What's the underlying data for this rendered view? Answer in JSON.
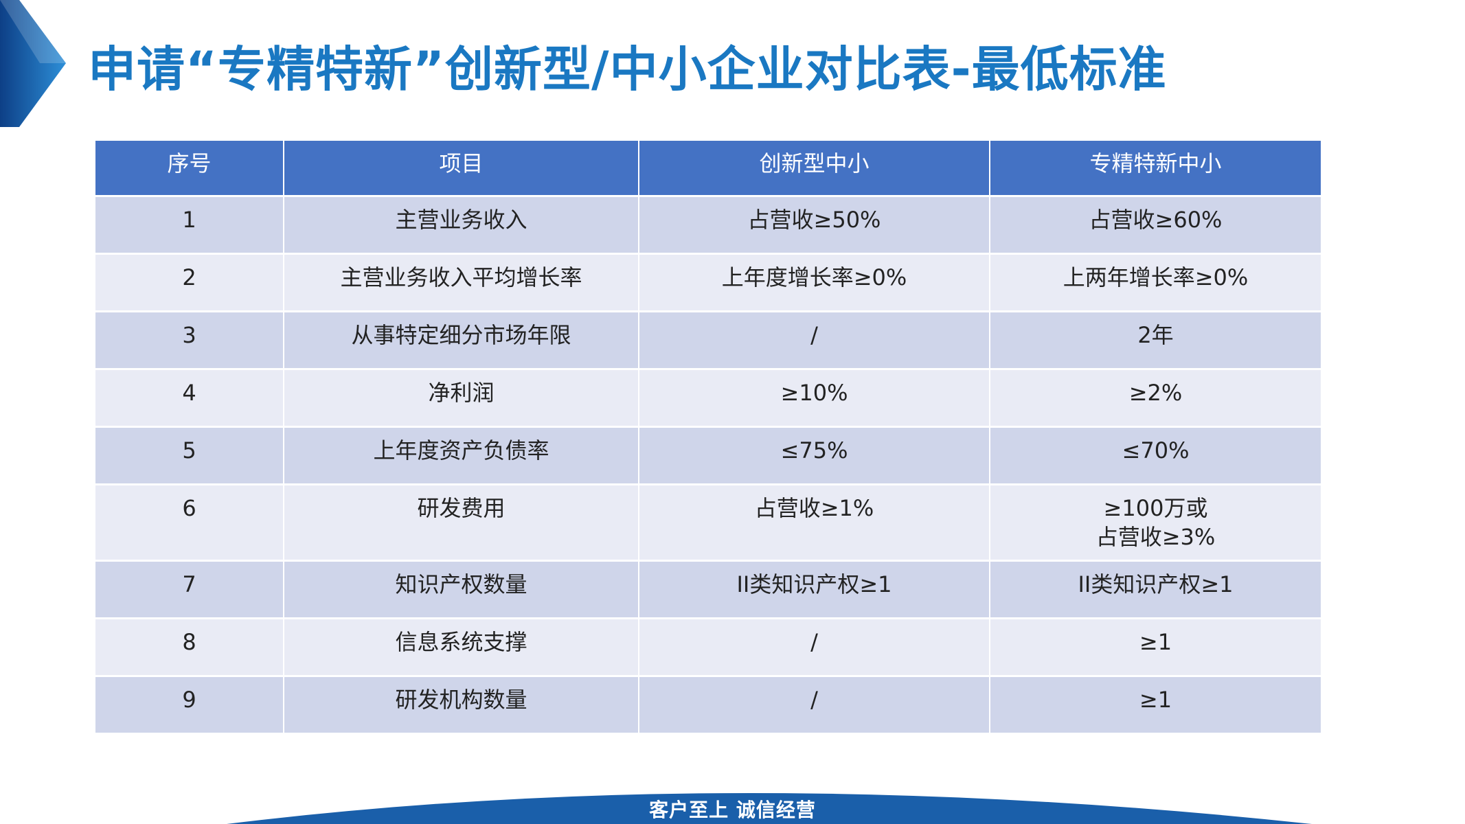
{
  "title": "申请“专精特新”创新型/中小企业对比表-最低标准",
  "table": {
    "headers": [
      "序号",
      "项目",
      "创新型中小",
      "专精特新中小"
    ],
    "rows": [
      {
        "no": "1",
        "item": "主营业务收入",
        "innovative": [
          "占营收≥50%"
        ],
        "specialized": [
          "占营收≥60%"
        ]
      },
      {
        "no": "2",
        "item": "主营业务收入平均增长率",
        "innovative": [
          "上年度增长率≥0%"
        ],
        "specialized": [
          "上两年增长率≥0%"
        ]
      },
      {
        "no": "3",
        "item": "从事特定细分市场年限",
        "innovative": [
          "/"
        ],
        "specialized": [
          "2年"
        ]
      },
      {
        "no": "4",
        "item": "净利润",
        "innovative": [
          "≥10%"
        ],
        "specialized": [
          "≥2%"
        ]
      },
      {
        "no": "5",
        "item": "上年度资产负债率",
        "innovative": [
          "≤75%"
        ],
        "specialized": [
          "≤70%"
        ]
      },
      {
        "no": "6",
        "item": "研发费用",
        "innovative": [
          "占营收≥1%"
        ],
        "specialized": [
          "≥100万或",
          "占营收≥3%"
        ]
      },
      {
        "no": "7",
        "item": "知识产权数量",
        "innovative": [
          "II类知识产权≥1"
        ],
        "specialized": [
          "II类知识产权≥1"
        ]
      },
      {
        "no": "8",
        "item": "信息系统支撑",
        "innovative": [
          "/"
        ],
        "specialized": [
          "≥1"
        ]
      },
      {
        "no": "9",
        "item": "研发机构数量",
        "innovative": [
          "/"
        ],
        "specialized": [
          "≥1"
        ]
      }
    ]
  },
  "footer": {
    "slogan": "客户至上 诚信经营"
  },
  "colors": {
    "title": "#1a78c2",
    "header_bg": "#4472c4",
    "row_odd_bg": "#cfd5ea",
    "row_even_bg": "#e9ebf5",
    "footer_wave": "#1a5faa"
  },
  "icons": {
    "corner": "chevron-arrow-icon"
  }
}
